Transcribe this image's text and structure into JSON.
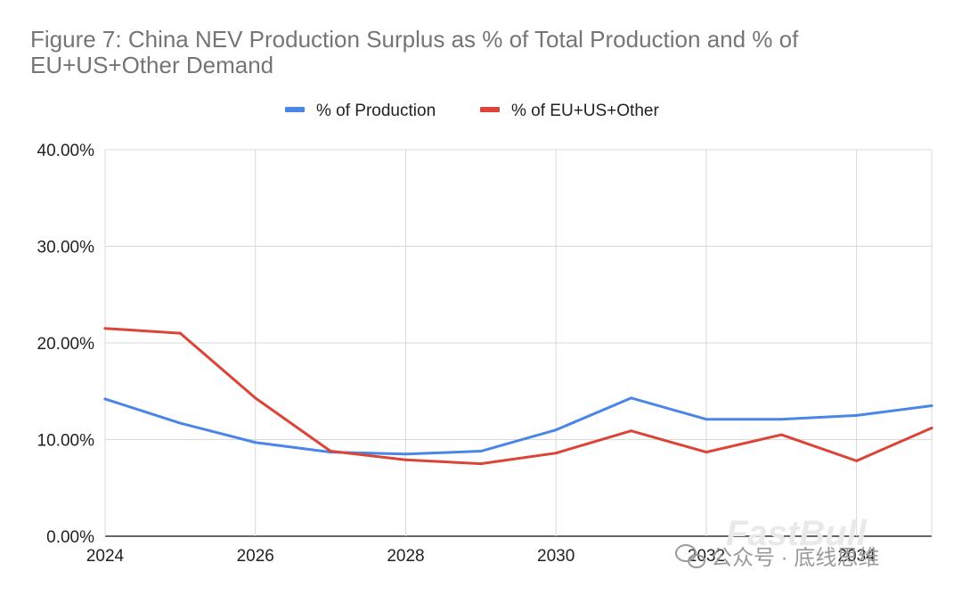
{
  "chart_data": {
    "type": "line",
    "title": "Figure 7: China NEV Production Surplus as % of Total Production and % of EU+US+Other Demand",
    "x": [
      2024,
      2025,
      2026,
      2027,
      2028,
      2029,
      2030,
      2031,
      2032,
      2033,
      2034,
      2035
    ],
    "x_tick_labels": [
      "2024",
      "2026",
      "2028",
      "2030",
      "2032",
      "2034"
    ],
    "y_tick_labels": [
      "0.00%",
      "10.00%",
      "20.00%",
      "30.00%",
      "40.00%"
    ],
    "ylim": [
      0,
      40
    ],
    "xlim": [
      2024,
      2035
    ],
    "xlabel": "",
    "ylabel": "",
    "grid": true,
    "legend_position": "top",
    "series": [
      {
        "name": "% of Production",
        "color": "#4a86e8",
        "values": [
          14.2,
          11.7,
          9.7,
          8.7,
          8.5,
          8.8,
          11.0,
          14.3,
          12.1,
          12.1,
          12.5,
          13.5
        ]
      },
      {
        "name": "% of EU+US+Other",
        "color": "#dc4437",
        "values": [
          21.5,
          21.0,
          14.3,
          8.8,
          7.9,
          7.5,
          8.6,
          10.9,
          8.7,
          10.5,
          7.8,
          11.2
        ]
      }
    ]
  },
  "watermark": {
    "brand": "FastBull",
    "text": "公众号 · 底线思维",
    "icon": "wechat-icon"
  }
}
